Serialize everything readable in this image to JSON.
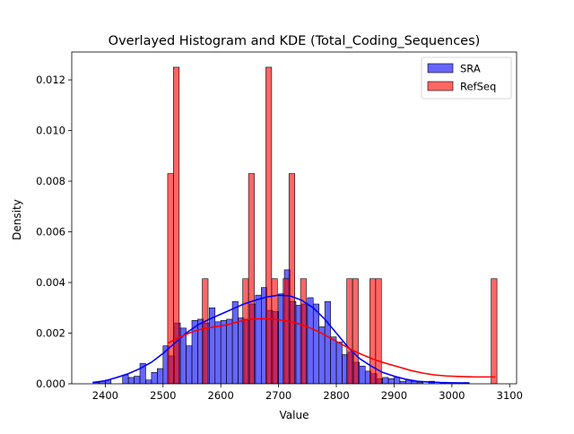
{
  "chart_data": {
    "type": "bar",
    "title": "Overlayed Histogram and KDE (Total_Coding_Sequences)",
    "xlabel": "Value",
    "ylabel": "Density",
    "xlim": [
      2342,
      3112
    ],
    "ylim": [
      0,
      0.0131
    ],
    "xticks": [
      2400,
      2500,
      2600,
      2700,
      2800,
      2900,
      3000,
      3100
    ],
    "yticks": [
      0.0,
      0.002,
      0.004,
      0.006,
      0.008,
      0.01,
      0.012
    ],
    "ytick_labels": [
      "0.000",
      "0.002",
      "0.004",
      "0.006",
      "0.008",
      "0.010",
      "0.012"
    ],
    "legend_position": "top-right",
    "colors": {
      "SRA": "#0000ff",
      "RefSeq": "#ff0000"
    },
    "series": [
      {
        "name": "SRA",
        "kind": "histogram",
        "bin_width": 10.0,
        "bins": [
          [
            2380,
            2390,
            5e-05
          ],
          [
            2390,
            2400,
            0.0001
          ],
          [
            2400,
            2410,
            0.00015
          ],
          [
            2430,
            2440,
            0.00035
          ],
          [
            2440,
            2450,
            0.00025
          ],
          [
            2450,
            2460,
            0.0003
          ],
          [
            2460,
            2470,
            0.0008
          ],
          [
            2470,
            2480,
            0.00015
          ],
          [
            2480,
            2490,
            0.00045
          ],
          [
            2490,
            2500,
            0.0006
          ],
          [
            2500,
            2510,
            0.0015
          ],
          [
            2510,
            2520,
            0.0011
          ],
          [
            2520,
            2530,
            0.0024
          ],
          [
            2530,
            2540,
            0.0022
          ],
          [
            2540,
            2550,
            0.0015
          ],
          [
            2550,
            2560,
            0.0025
          ],
          [
            2560,
            2570,
            0.00255
          ],
          [
            2570,
            2580,
            0.0024
          ],
          [
            2580,
            2590,
            0.003
          ],
          [
            2590,
            2600,
            0.00245
          ],
          [
            2600,
            2610,
            0.0025
          ],
          [
            2610,
            2620,
            0.00255
          ],
          [
            2620,
            2630,
            0.00325
          ],
          [
            2630,
            2640,
            0.0026
          ],
          [
            2640,
            2650,
            0.00255
          ],
          [
            2650,
            2660,
            0.00315
          ],
          [
            2660,
            2670,
            0.0035
          ],
          [
            2670,
            2680,
            0.0038
          ],
          [
            2680,
            2690,
            0.0029
          ],
          [
            2690,
            2700,
            0.00285
          ],
          [
            2700,
            2710,
            0.00355
          ],
          [
            2710,
            2720,
            0.0045
          ],
          [
            2720,
            2730,
            0.00325
          ],
          [
            2730,
            2740,
            0.0031
          ],
          [
            2740,
            2750,
            0.00315
          ],
          [
            2750,
            2760,
            0.0034
          ],
          [
            2760,
            2770,
            0.00315
          ],
          [
            2770,
            2780,
            0.00225
          ],
          [
            2780,
            2790,
            0.00325
          ],
          [
            2790,
            2800,
            0.00185
          ],
          [
            2800,
            2810,
            0.00165
          ],
          [
            2810,
            2820,
            0.00115
          ],
          [
            2820,
            2830,
            0.00125
          ],
          [
            2830,
            2840,
            0.00085
          ],
          [
            2840,
            2850,
            0.0007
          ],
          [
            2850,
            2860,
            0.0005
          ],
          [
            2860,
            2870,
            0.0004
          ],
          [
            2870,
            2880,
            0.0002
          ],
          [
            2880,
            2890,
            0.00025
          ],
          [
            2890,
            2900,
            0.0002
          ],
          [
            2900,
            2910,
            0.00025
          ],
          [
            2910,
            2920,
            0.0001
          ],
          [
            2920,
            2930,
            0.00015
          ],
          [
            2930,
            2940,
            0.0001
          ],
          [
            2940,
            2950,
            5e-05
          ],
          [
            2960,
            2970,
            0.0001
          ],
          [
            2980,
            2990,
            5e-05
          ],
          [
            3020,
            3030,
            5e-05
          ]
        ],
        "kde": [
          [
            2378,
            5e-05
          ],
          [
            2400,
            0.00012
          ],
          [
            2420,
            0.00025
          ],
          [
            2440,
            0.0004
          ],
          [
            2460,
            0.0006
          ],
          [
            2480,
            0.00085
          ],
          [
            2500,
            0.0012
          ],
          [
            2520,
            0.0016
          ],
          [
            2540,
            0.002
          ],
          [
            2560,
            0.00232
          ],
          [
            2580,
            0.00255
          ],
          [
            2600,
            0.00275
          ],
          [
            2620,
            0.00295
          ],
          [
            2640,
            0.00315
          ],
          [
            2660,
            0.0033
          ],
          [
            2680,
            0.00343
          ],
          [
            2700,
            0.0035
          ],
          [
            2720,
            0.00347
          ],
          [
            2740,
            0.0033
          ],
          [
            2760,
            0.003
          ],
          [
            2780,
            0.00255
          ],
          [
            2800,
            0.002
          ],
          [
            2820,
            0.00145
          ],
          [
            2840,
            0.001
          ],
          [
            2860,
            0.0007
          ],
          [
            2880,
            0.00045
          ],
          [
            2900,
            0.0003
          ],
          [
            2920,
            0.00018
          ],
          [
            2940,
            0.0001
          ],
          [
            2960,
            7e-05
          ],
          [
            2980,
            5e-05
          ],
          [
            3000,
            4e-05
          ],
          [
            3030,
            3e-05
          ]
        ]
      },
      {
        "name": "RefSeq",
        "kind": "histogram",
        "bin_width": 10.0,
        "bins": [
          [
            2508,
            2518,
            0.0083
          ],
          [
            2518,
            2528,
            0.0125
          ],
          [
            2568,
            2578,
            0.00415
          ],
          [
            2638,
            2648,
            0.00415
          ],
          [
            2648,
            2658,
            0.0083
          ],
          [
            2678,
            2688,
            0.0125
          ],
          [
            2688,
            2698,
            0.00415
          ],
          [
            2708,
            2718,
            0.00415
          ],
          [
            2718,
            2728,
            0.0083
          ],
          [
            2738,
            2748,
            0.00415
          ],
          [
            2818,
            2828,
            0.00415
          ],
          [
            2828,
            2838,
            0.00415
          ],
          [
            2858,
            2868,
            0.00415
          ],
          [
            2868,
            2878,
            0.00415
          ],
          [
            3068,
            3078,
            0.00415
          ]
        ],
        "kde": [
          [
            2508,
            0.0016
          ],
          [
            2530,
            0.00185
          ],
          [
            2550,
            0.00205
          ],
          [
            2570,
            0.00218
          ],
          [
            2590,
            0.00225
          ],
          [
            2610,
            0.00232
          ],
          [
            2630,
            0.00245
          ],
          [
            2650,
            0.00255
          ],
          [
            2670,
            0.00257
          ],
          [
            2690,
            0.00255
          ],
          [
            2710,
            0.0025
          ],
          [
            2730,
            0.0024
          ],
          [
            2750,
            0.00225
          ],
          [
            2770,
            0.00205
          ],
          [
            2790,
            0.0018
          ],
          [
            2810,
            0.00155
          ],
          [
            2830,
            0.0013
          ],
          [
            2850,
            0.0011
          ],
          [
            2870,
            0.00092
          ],
          [
            2890,
            0.00078
          ],
          [
            2910,
            0.00065
          ],
          [
            2930,
            0.00052
          ],
          [
            2950,
            0.00042
          ],
          [
            2970,
            0.00035
          ],
          [
            2990,
            0.00031
          ],
          [
            3010,
            0.00029
          ],
          [
            3040,
            0.00027
          ],
          [
            3075,
            0.00027
          ]
        ]
      }
    ]
  }
}
